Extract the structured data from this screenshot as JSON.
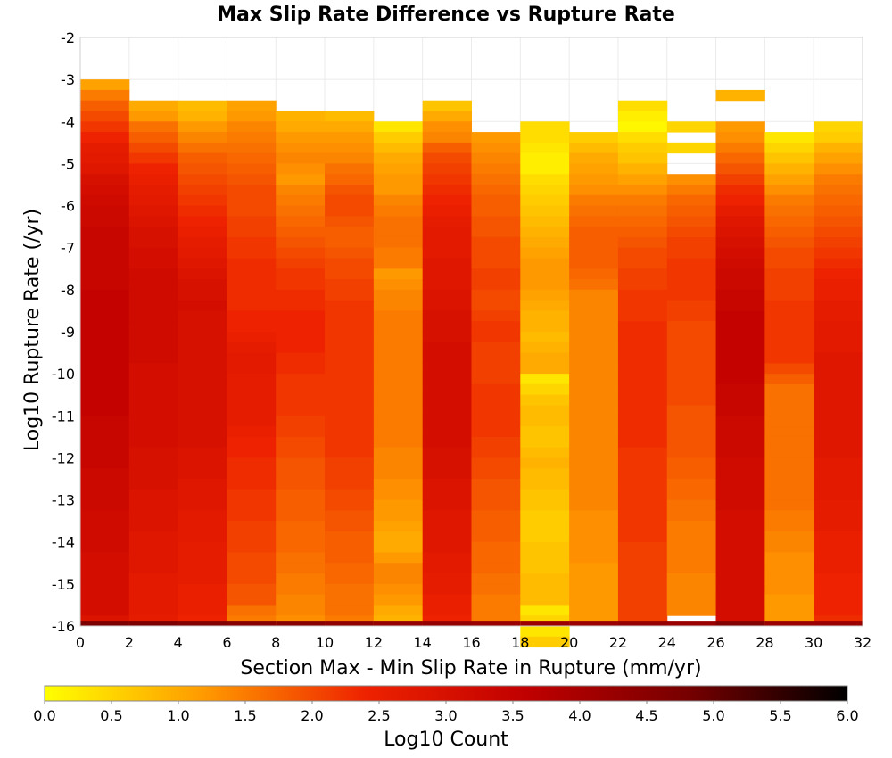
{
  "chart_data": {
    "type": "heatmap",
    "title": "Max Slip Rate Difference vs Rupture Rate",
    "xlabel": "Section Max - Min Slip Rate in Rupture (mm/yr)",
    "ylabel": "Log10 Rupture Rate (/yr)",
    "xlim": [
      0,
      32
    ],
    "ylim": [
      -16,
      -2
    ],
    "x_ticks": [
      "0",
      "2",
      "4",
      "6",
      "8",
      "10",
      "12",
      "14",
      "16",
      "18",
      "20",
      "22",
      "24",
      "26",
      "28",
      "30",
      "32"
    ],
    "y_ticks": [
      "-2",
      "-3",
      "-4",
      "-5",
      "-6",
      "-7",
      "-8",
      "-9",
      "-10",
      "-11",
      "-12",
      "-13",
      "-14",
      "-15",
      "-16"
    ],
    "x_bin_width": 2,
    "y_bin_height": 0.25,
    "grid": true,
    "colorbar": {
      "label": "Log10 Count",
      "range": [
        0.0,
        6.0
      ],
      "ticks": [
        "0.0",
        "0.5",
        "1.0",
        "1.5",
        "2.0",
        "2.5",
        "3.0",
        "3.5",
        "4.0",
        "4.5",
        "5.0",
        "5.5",
        "6.0"
      ],
      "colors": [
        "#ffff00",
        "#ff9900",
        "#ee2200",
        "#c00000",
        "#770000",
        "#000000"
      ]
    },
    "columns": [
      {
        "x_start": 0,
        "top": -3.0,
        "values": [
          1.1,
          1.5,
          1.8,
          2.0,
          2.2,
          2.4,
          2.6,
          2.7,
          2.8,
          3.0,
          3.1,
          3.2,
          3.3,
          3.3,
          3.4,
          3.4,
          3.4,
          3.4,
          3.4,
          3.4,
          3.5,
          3.5,
          3.5,
          3.5,
          3.5,
          3.5,
          3.5,
          3.5,
          3.5,
          3.5,
          3.5,
          3.5,
          3.4,
          3.4,
          3.4,
          3.4,
          3.4,
          3.3,
          3.3,
          3.3,
          3.3,
          3.2,
          3.2,
          3.2,
          3.2,
          3.1,
          3.1,
          3.1,
          3.1,
          3.1,
          3.1,
          2.9
        ],
        "bottom": 4.7
      },
      {
        "x_start": 2,
        "top": -3.5,
        "values": [
          1.0,
          1.2,
          1.6,
          1.8,
          2.0,
          2.2,
          2.4,
          2.5,
          2.6,
          2.7,
          2.8,
          2.9,
          3.0,
          3.0,
          3.1,
          3.1,
          3.2,
          3.2,
          3.2,
          3.2,
          3.2,
          3.2,
          3.2,
          3.2,
          3.2,
          3.1,
          3.1,
          3.1,
          3.1,
          3.1,
          3.1,
          3.1,
          3.1,
          3.0,
          3.0,
          3.0,
          3.0,
          2.9,
          2.9,
          2.9,
          2.9,
          2.8,
          2.8,
          2.8,
          2.8,
          2.7,
          2.7,
          2.7,
          2.7,
          2.6
        ],
        "bottom": 4.7
      },
      {
        "x_start": 4,
        "top": -3.5,
        "values": [
          0.8,
          0.9,
          1.2,
          1.4,
          1.6,
          1.8,
          1.9,
          2.0,
          2.1,
          2.2,
          2.3,
          2.4,
          2.5,
          2.6,
          2.7,
          2.8,
          2.9,
          3.0,
          3.0,
          3.1,
          3.0,
          3.0,
          3.0,
          3.0,
          3.0,
          3.0,
          3.0,
          3.0,
          3.0,
          3.0,
          3.0,
          3.0,
          3.0,
          2.9,
          2.9,
          2.9,
          2.8,
          2.8,
          2.8,
          2.7,
          2.7,
          2.7,
          2.6,
          2.6,
          2.6,
          2.6,
          2.5,
          2.5,
          2.5,
          2.4
        ],
        "bottom": 4.6
      },
      {
        "x_start": 6,
        "top": -3.5,
        "values": [
          1.1,
          1.2,
          1.4,
          1.5,
          1.6,
          1.7,
          1.8,
          1.9,
          2.0,
          2.0,
          2.0,
          2.1,
          2.1,
          2.2,
          2.2,
          2.3,
          2.3,
          2.3,
          2.3,
          2.3,
          2.4,
          2.4,
          2.5,
          2.6,
          2.7,
          2.7,
          2.6,
          2.6,
          2.6,
          2.6,
          2.6,
          2.5,
          2.4,
          2.4,
          2.3,
          2.3,
          2.3,
          2.2,
          2.2,
          2.2,
          2.1,
          2.1,
          2.1,
          2.0,
          2.0,
          2.0,
          1.9,
          1.9,
          1.6,
          1.5
        ],
        "bottom": 4.5
      },
      {
        "x_start": 8,
        "top": -3.75,
        "values": [
          0.9,
          1.0,
          1.2,
          1.3,
          1.4,
          1.3,
          1.2,
          1.4,
          1.5,
          1.6,
          1.7,
          1.8,
          1.9,
          2.0,
          2.1,
          2.2,
          2.2,
          2.3,
          2.3,
          2.4,
          2.4,
          2.4,
          2.4,
          2.3,
          2.3,
          2.2,
          2.2,
          2.2,
          2.2,
          2.1,
          2.1,
          2.0,
          2.0,
          1.9,
          1.9,
          1.9,
          1.8,
          1.8,
          1.8,
          1.7,
          1.7,
          1.7,
          1.6,
          1.6,
          1.5,
          1.5,
          1.4,
          1.4,
          1.3
        ],
        "bottom": 4.5
      },
      {
        "x_start": 10,
        "top": -3.75,
        "values": [
          0.8,
          1.0,
          1.2,
          1.3,
          1.4,
          1.6,
          1.7,
          1.9,
          2.0,
          2.0,
          1.9,
          1.8,
          1.8,
          1.9,
          2.0,
          2.0,
          2.1,
          2.1,
          2.2,
          2.2,
          2.2,
          2.2,
          2.2,
          2.2,
          2.2,
          2.2,
          2.2,
          2.2,
          2.2,
          2.2,
          2.2,
          2.2,
          2.2,
          2.1,
          2.1,
          2.1,
          2.0,
          2.0,
          1.9,
          1.9,
          1.8,
          1.8,
          1.8,
          1.7,
          1.7,
          1.6,
          1.6,
          1.6,
          1.5
        ],
        "bottom": 4.4
      },
      {
        "x_start": 12,
        "top": -4.0,
        "values": [
          0.3,
          0.6,
          0.8,
          1.0,
          1.1,
          1.2,
          1.2,
          1.4,
          1.5,
          1.6,
          1.6,
          1.6,
          1.5,
          1.5,
          1.2,
          1.3,
          1.4,
          1.4,
          1.5,
          1.5,
          1.5,
          1.5,
          1.5,
          1.5,
          1.5,
          1.5,
          1.5,
          1.5,
          1.5,
          1.5,
          1.5,
          1.4,
          1.4,
          1.4,
          1.3,
          1.3,
          1.2,
          1.2,
          1.1,
          1.0,
          1.0,
          1.2,
          1.4,
          1.4,
          1.3,
          1.2,
          1.0,
          0.9
        ],
        "bottom": 4.3
      },
      {
        "x_start": 14,
        "top": -3.5,
        "values": [
          0.7,
          1.0,
          1.3,
          1.4,
          1.8,
          2.0,
          2.1,
          2.2,
          2.3,
          2.4,
          2.5,
          2.6,
          2.7,
          2.7,
          2.7,
          2.8,
          2.8,
          2.8,
          2.9,
          2.9,
          3.0,
          3.0,
          3.0,
          3.1,
          3.1,
          3.1,
          3.1,
          3.1,
          3.1,
          3.1,
          3.1,
          3.1,
          3.1,
          3.0,
          3.0,
          3.0,
          2.9,
          2.9,
          2.9,
          2.8,
          2.8,
          2.8,
          2.8,
          2.7,
          2.7,
          2.6,
          2.6,
          2.5,
          2.5,
          2.4
        ],
        "bottom": 4.3
      },
      {
        "x_start": 16,
        "top": -4.25,
        "values": [
          1.2,
          1.3,
          1.4,
          1.5,
          1.6,
          1.7,
          1.8,
          1.8,
          1.9,
          1.9,
          2.0,
          2.0,
          2.0,
          2.1,
          2.1,
          2.0,
          2.0,
          2.1,
          2.2,
          2.2,
          2.1,
          2.1,
          2.1,
          2.1,
          2.2,
          2.2,
          2.2,
          2.2,
          2.2,
          2.1,
          2.1,
          2.0,
          2.0,
          1.9,
          1.9,
          1.9,
          1.8,
          1.8,
          1.8,
          1.7,
          1.7,
          1.7,
          1.6,
          1.6,
          1.5,
          1.5,
          1.5
        ],
        "bottom": 4.2
      },
      {
        "x_start": 18,
        "top": -4.0,
        "values": [
          0.4,
          0.4,
          0.3,
          0.2,
          0.2,
          0.4,
          0.5,
          0.6,
          0.7,
          0.8,
          0.9,
          1.0,
          1.1,
          1.2,
          1.2,
          1.2,
          1.1,
          1.0,
          0.9,
          0.9,
          0.8,
          0.9,
          1.0,
          1.0,
          0.3,
          0.5,
          0.7,
          0.8,
          0.8,
          0.7,
          0.7,
          0.8,
          0.9,
          0.8,
          0.8,
          0.7,
          0.7,
          0.6,
          0.6,
          0.6,
          0.7,
          0.7,
          0.7,
          0.8,
          0.8,
          0.8,
          0.3,
          0.5,
          0.3,
          0.6
        ],
        "bottom": 4.2
      },
      {
        "x_start": 20,
        "top": -4.25,
        "values": [
          0.6,
          0.8,
          1.0,
          1.1,
          1.2,
          1.3,
          1.5,
          1.6,
          1.7,
          1.8,
          1.8,
          1.8,
          1.8,
          1.7,
          1.6,
          1.4,
          1.4,
          1.4,
          1.4,
          1.4,
          1.4,
          1.4,
          1.4,
          1.4,
          1.4,
          1.4,
          1.4,
          1.4,
          1.4,
          1.4,
          1.4,
          1.4,
          1.4,
          1.4,
          1.4,
          1.4,
          1.3,
          1.3,
          1.3,
          1.3,
          1.3,
          1.2,
          1.2,
          1.2,
          1.2,
          1.2,
          1.2
        ],
        "bottom": 4.2
      },
      {
        "x_start": 22,
        "top": -3.5,
        "values": [
          0.4,
          0.2,
          0.1,
          0.4,
          0.6,
          0.7,
          0.9,
          1.1,
          1.3,
          1.5,
          1.6,
          1.7,
          1.8,
          1.9,
          2.0,
          2.0,
          2.1,
          2.1,
          2.2,
          2.2,
          2.2,
          2.3,
          2.3,
          2.3,
          2.3,
          2.3,
          2.3,
          2.3,
          2.3,
          2.3,
          2.3,
          2.3,
          2.3,
          2.2,
          2.2,
          2.2,
          2.2,
          2.2,
          2.2,
          2.2,
          2.2,
          2.2,
          2.1,
          2.1,
          2.1,
          2.1,
          2.1,
          2.1,
          2.1,
          2.1
        ],
        "bottom": 4.3
      },
      {
        "x_start": 24,
        "top": -4.0,
        "values": [
          0.5,
          null,
          0.5,
          null,
          null,
          1.3,
          1.5,
          1.7,
          1.8,
          1.9,
          2.0,
          2.1,
          2.1,
          2.2,
          2.2,
          2.2,
          2.2,
          2.1,
          2.1,
          2.0,
          2.0,
          2.0,
          2.0,
          2.0,
          2.0,
          2.0,
          2.0,
          1.9,
          1.9,
          1.9,
          1.9,
          1.9,
          1.8,
          1.8,
          1.7,
          1.7,
          1.6,
          1.6,
          1.5,
          1.5,
          1.5,
          1.5,
          1.5,
          1.4,
          1.4,
          1.4
        ],
        "bottom": 4.2
      },
      {
        "x_start": 26,
        "top": -3.25,
        "values": [
          0.9,
          null,
          null,
          1.2,
          1.3,
          1.5,
          1.7,
          1.9,
          2.1,
          2.3,
          2.4,
          2.6,
          2.8,
          2.9,
          3.0,
          3.1,
          3.2,
          3.3,
          3.3,
          3.4,
          3.4,
          3.5,
          3.5,
          3.5,
          3.5,
          3.5,
          3.5,
          3.5,
          3.4,
          3.4,
          3.4,
          3.3,
          3.3,
          3.3,
          3.3,
          3.2,
          3.2,
          3.2,
          3.2,
          3.2,
          3.1,
          3.1,
          3.1,
          3.1,
          3.1,
          3.1,
          3.1,
          3.1,
          3.1,
          3.1,
          3.1
        ],
        "bottom": 4.6
      },
      {
        "x_start": 28,
        "top": -4.25,
        "values": [
          0.3,
          0.5,
          0.7,
          0.9,
          1.1,
          1.3,
          1.5,
          1.6,
          1.7,
          1.8,
          1.9,
          2.0,
          2.0,
          2.1,
          2.1,
          2.1,
          2.2,
          2.2,
          2.2,
          2.2,
          2.2,
          2.2,
          2.0,
          1.8,
          1.6,
          1.6,
          1.6,
          1.6,
          1.6,
          1.6,
          1.6,
          1.6,
          1.6,
          1.6,
          1.6,
          1.6,
          1.5,
          1.5,
          1.4,
          1.4,
          1.3,
          1.3,
          1.3,
          1.3,
          1.2,
          1.2,
          1.2
        ],
        "bottom": 4.2
      },
      {
        "x_start": 30,
        "top": -4.0,
        "values": [
          0.5,
          0.6,
          0.9,
          1.1,
          1.3,
          1.5,
          1.6,
          1.7,
          1.8,
          1.9,
          2.0,
          2.1,
          2.2,
          2.3,
          2.4,
          2.5,
          2.5,
          2.6,
          2.6,
          2.7,
          2.7,
          2.7,
          2.8,
          2.8,
          2.8,
          2.8,
          2.8,
          2.8,
          2.8,
          2.8,
          2.8,
          2.8,
          2.7,
          2.7,
          2.7,
          2.7,
          2.6,
          2.6,
          2.6,
          2.5,
          2.5,
          2.5,
          2.5,
          2.4,
          2.4,
          2.4,
          2.4,
          2.3
        ],
        "bottom": 4.2
      }
    ]
  }
}
